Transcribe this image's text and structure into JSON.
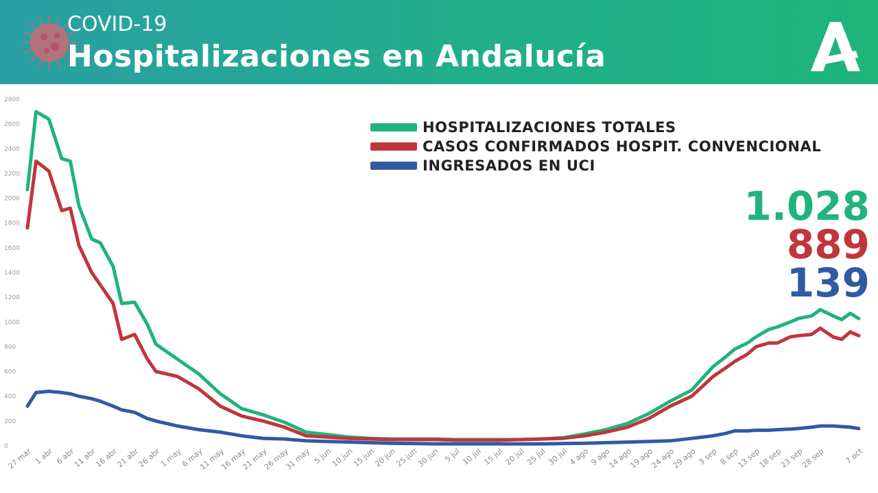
{
  "header": {
    "subtitle": "COVID-19",
    "title": "Hospitalizaciones en Andalucía"
  },
  "colors": {
    "green": "#1fb47b",
    "red": "#c0363d",
    "blue": "#2f5ba3",
    "banner": "#21ae8a"
  },
  "icons": [
    "virus-icon",
    "junta-andalucia-logo-icon"
  ],
  "latest": {
    "totales": "1.028",
    "convencional": "889",
    "uci": "139"
  },
  "chart_data": {
    "type": "line",
    "title": "",
    "xlabel": "",
    "ylabel": "",
    "ylim": [
      0,
      2800
    ],
    "yticks": [
      0,
      200,
      400,
      600,
      800,
      1000,
      1200,
      1400,
      1600,
      1800,
      2000,
      2200,
      2400,
      2600,
      2800
    ],
    "xtick_labels": [
      "27 mar",
      "1 abr",
      "6 abr",
      "11 abr",
      "16 abr",
      "21 abr",
      "26 abr",
      "1 may",
      "6 may",
      "11 may",
      "16 may",
      "21 may",
      "26 may",
      "31 may",
      "5 jun",
      "10 jun",
      "15 jun",
      "20 jun",
      "25 jun",
      "30 jun",
      "5 jul",
      "10 jul",
      "15 jul",
      "20 jul",
      "25 jul",
      "30 jul",
      "4 ago",
      "9 ago",
      "14 ago",
      "19 ago",
      "24 ago",
      "29 ago",
      "3 sep",
      "8 sep",
      "13 sep",
      "18 sep",
      "23 sep",
      "28 sep",
      "7 oct"
    ],
    "legend_position": "top-right",
    "grid": false,
    "x": [
      "27 mar",
      "29 mar",
      "1 abr",
      "4 abr",
      "6 abr",
      "8 abr",
      "11 abr",
      "13 abr",
      "16 abr",
      "18 abr",
      "21 abr",
      "24 abr",
      "26 abr",
      "1 may",
      "6 may",
      "11 may",
      "16 may",
      "21 may",
      "26 may",
      "31 may",
      "5 jun",
      "10 jun",
      "15 jun",
      "20 jun",
      "25 jun",
      "30 jun",
      "5 jul",
      "10 jul",
      "15 jul",
      "20 jul",
      "25 jul",
      "30 jul",
      "4 ago",
      "9 ago",
      "14 ago",
      "19 ago",
      "24 ago",
      "29 ago",
      "3 sep",
      "6 sep",
      "8 sep",
      "11 sep",
      "13 sep",
      "16 sep",
      "18 sep",
      "21 sep",
      "23 sep",
      "26 sep",
      "28 sep",
      "1 oct",
      "3 oct",
      "5 oct",
      "7 oct"
    ],
    "series": [
      {
        "name": "HOSPITALIZACIONES TOTALES",
        "color": "#1fb47b",
        "values": [
          2070,
          2700,
          2640,
          2320,
          2300,
          1940,
          1670,
          1640,
          1450,
          1150,
          1160,
          980,
          820,
          700,
          580,
          420,
          300,
          250,
          190,
          110,
          90,
          70,
          60,
          55,
          55,
          55,
          50,
          50,
          50,
          50,
          55,
          65,
          95,
          130,
          180,
          260,
          360,
          450,
          640,
          720,
          780,
          830,
          880,
          940,
          960,
          1000,
          1030,
          1050,
          1100,
          1050,
          1020,
          1070,
          1028
        ]
      },
      {
        "name": "CASOS CONFIRMADOS HOSPIT. CONVENCIONAL",
        "color": "#c0363d",
        "values": [
          1760,
          2300,
          2220,
          1900,
          1920,
          1620,
          1400,
          1300,
          1150,
          860,
          900,
          700,
          600,
          560,
          460,
          320,
          240,
          200,
          150,
          80,
          70,
          60,
          55,
          50,
          50,
          50,
          45,
          45,
          45,
          50,
          55,
          60,
          80,
          110,
          150,
          220,
          320,
          400,
          560,
          630,
          680,
          740,
          800,
          830,
          830,
          880,
          890,
          900,
          950,
          880,
          860,
          920,
          889
        ]
      },
      {
        "name": "INGRESADOS EN UCI",
        "color": "#2f5ba3",
        "values": [
          320,
          430,
          440,
          430,
          420,
          400,
          380,
          360,
          320,
          290,
          270,
          220,
          200,
          160,
          130,
          110,
          80,
          60,
          55,
          40,
          35,
          30,
          25,
          20,
          18,
          15,
          15,
          15,
          15,
          15,
          15,
          18,
          20,
          25,
          30,
          35,
          40,
          60,
          80,
          100,
          120,
          120,
          125,
          125,
          130,
          135,
          140,
          150,
          160,
          160,
          155,
          150,
          139
        ]
      }
    ]
  }
}
